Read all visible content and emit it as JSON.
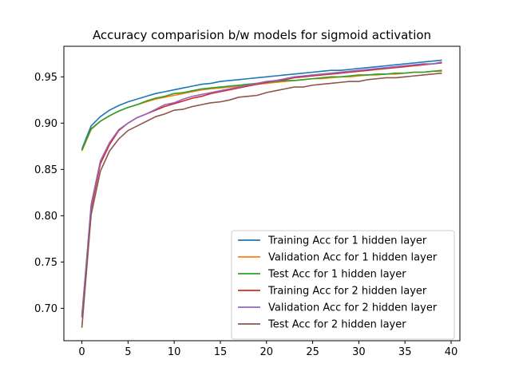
{
  "chart_data": {
    "type": "line",
    "title": "Accuracy comparision b/w models for sigmoid activation",
    "xlabel": "",
    "ylabel": "",
    "xlim": [
      -1.95,
      40.95
    ],
    "ylim": [
      0.665,
      0.983
    ],
    "xticks": [
      0,
      5,
      10,
      15,
      20,
      25,
      30,
      35,
      40
    ],
    "yticks": [
      0.7,
      0.75,
      0.8,
      0.85,
      0.9,
      0.95
    ],
    "xtick_labels": [
      "0",
      "5",
      "10",
      "15",
      "20",
      "25",
      "30",
      "35",
      "40"
    ],
    "ytick_labels": [
      "0.70",
      "0.75",
      "0.80",
      "0.85",
      "0.90",
      "0.95"
    ],
    "grid": false,
    "legend_position": "lower right",
    "series": [
      {
        "name": "Training Acc for 1 hidden layer",
        "color": "#1f77b4",
        "x": [
          0,
          1,
          2,
          3,
          4,
          5,
          6,
          7,
          8,
          9,
          10,
          11,
          12,
          13,
          14,
          15,
          16,
          17,
          18,
          19,
          20,
          21,
          22,
          23,
          24,
          25,
          26,
          27,
          28,
          29,
          30,
          31,
          32,
          33,
          34,
          35,
          36,
          37,
          38,
          39
        ],
        "y": [
          0.872,
          0.897,
          0.907,
          0.914,
          0.919,
          0.923,
          0.926,
          0.929,
          0.932,
          0.934,
          0.936,
          0.938,
          0.94,
          0.942,
          0.943,
          0.945,
          0.946,
          0.947,
          0.948,
          0.949,
          0.95,
          0.951,
          0.952,
          0.953,
          0.954,
          0.955,
          0.956,
          0.957,
          0.957,
          0.958,
          0.959,
          0.96,
          0.961,
          0.962,
          0.963,
          0.964,
          0.965,
          0.966,
          0.967,
          0.968
        ]
      },
      {
        "name": "Validation Acc for 1 hidden layer",
        "color": "#ff7f0e",
        "x": [
          0,
          1,
          2,
          3,
          4,
          5,
          6,
          7,
          8,
          9,
          10,
          11,
          12,
          13,
          14,
          15,
          16,
          17,
          18,
          19,
          20,
          21,
          22,
          23,
          24,
          25,
          26,
          27,
          28,
          29,
          30,
          31,
          32,
          33,
          34,
          35,
          36,
          37,
          38,
          39
        ],
        "y": [
          0.87,
          0.893,
          0.902,
          0.908,
          0.913,
          0.917,
          0.92,
          0.923,
          0.926,
          0.928,
          0.93,
          0.932,
          0.934,
          0.936,
          0.937,
          0.938,
          0.939,
          0.94,
          0.941,
          0.942,
          0.943,
          0.944,
          0.945,
          0.946,
          0.947,
          0.948,
          0.948,
          0.949,
          0.95,
          0.95,
          0.951,
          0.952,
          0.952,
          0.953,
          0.953,
          0.954,
          0.955,
          0.955,
          0.956,
          0.956
        ]
      },
      {
        "name": "Test Acc for 1 hidden layer",
        "color": "#2ca02c",
        "x": [
          0,
          1,
          2,
          3,
          4,
          5,
          6,
          7,
          8,
          9,
          10,
          11,
          12,
          13,
          14,
          15,
          16,
          17,
          18,
          19,
          20,
          21,
          22,
          23,
          24,
          25,
          26,
          27,
          28,
          29,
          30,
          31,
          32,
          33,
          34,
          35,
          36,
          37,
          38,
          39
        ],
        "y": [
          0.871,
          0.894,
          0.902,
          0.908,
          0.913,
          0.917,
          0.92,
          0.924,
          0.927,
          0.929,
          0.932,
          0.933,
          0.935,
          0.937,
          0.938,
          0.939,
          0.94,
          0.941,
          0.942,
          0.943,
          0.944,
          0.945,
          0.946,
          0.946,
          0.947,
          0.948,
          0.949,
          0.95,
          0.95,
          0.951,
          0.952,
          0.952,
          0.953,
          0.953,
          0.954,
          0.954,
          0.955,
          0.955,
          0.956,
          0.957
        ]
      },
      {
        "name": "Training Acc for 2 hidden layer",
        "color": "#d62728",
        "x": [
          0,
          1,
          2,
          3,
          4,
          5,
          6,
          7,
          8,
          9,
          10,
          11,
          12,
          13,
          14,
          15,
          16,
          17,
          18,
          19,
          20,
          21,
          22,
          23,
          24,
          25,
          26,
          27,
          28,
          29,
          30,
          31,
          32,
          33,
          34,
          35,
          36,
          37,
          38,
          39
        ],
        "y": [
          0.692,
          0.808,
          0.856,
          0.877,
          0.892,
          0.9,
          0.906,
          0.91,
          0.914,
          0.918,
          0.921,
          0.924,
          0.927,
          0.929,
          0.932,
          0.934,
          0.936,
          0.938,
          0.94,
          0.942,
          0.944,
          0.946,
          0.947,
          0.949,
          0.95,
          0.951,
          0.952,
          0.953,
          0.954,
          0.955,
          0.956,
          0.957,
          0.958,
          0.959,
          0.96,
          0.961,
          0.962,
          0.963,
          0.964,
          0.965
        ]
      },
      {
        "name": "Validation Acc for 2 hidden layer",
        "color": "#9467bd",
        "x": [
          0,
          1,
          2,
          3,
          4,
          5,
          6,
          7,
          8,
          9,
          10,
          11,
          12,
          13,
          14,
          15,
          16,
          17,
          18,
          19,
          20,
          21,
          22,
          23,
          24,
          25,
          26,
          27,
          28,
          29,
          30,
          31,
          32,
          33,
          34,
          35,
          36,
          37,
          38,
          39
        ],
        "y": [
          0.69,
          0.812,
          0.859,
          0.879,
          0.893,
          0.9,
          0.906,
          0.91,
          0.915,
          0.92,
          0.922,
          0.926,
          0.929,
          0.931,
          0.933,
          0.935,
          0.937,
          0.939,
          0.941,
          0.943,
          0.945,
          0.946,
          0.948,
          0.95,
          0.951,
          0.952,
          0.953,
          0.954,
          0.955,
          0.956,
          0.957,
          0.958,
          0.959,
          0.96,
          0.961,
          0.962,
          0.963,
          0.964,
          0.964,
          0.966
        ]
      },
      {
        "name": "Test Acc for 2 hidden layer",
        "color": "#8c564b",
        "x": [
          0,
          1,
          2,
          3,
          4,
          5,
          6,
          7,
          8,
          9,
          10,
          11,
          12,
          13,
          14,
          15,
          16,
          17,
          18,
          19,
          20,
          21,
          22,
          23,
          24,
          25,
          26,
          27,
          28,
          29,
          30,
          31,
          32,
          33,
          34,
          35,
          36,
          37,
          38,
          39
        ],
        "y": [
          0.679,
          0.801,
          0.848,
          0.87,
          0.883,
          0.892,
          0.897,
          0.902,
          0.907,
          0.91,
          0.914,
          0.915,
          0.918,
          0.92,
          0.922,
          0.923,
          0.925,
          0.928,
          0.929,
          0.93,
          0.933,
          0.935,
          0.937,
          0.939,
          0.939,
          0.941,
          0.942,
          0.943,
          0.944,
          0.945,
          0.945,
          0.947,
          0.948,
          0.949,
          0.949,
          0.95,
          0.951,
          0.952,
          0.953,
          0.954
        ]
      }
    ]
  }
}
